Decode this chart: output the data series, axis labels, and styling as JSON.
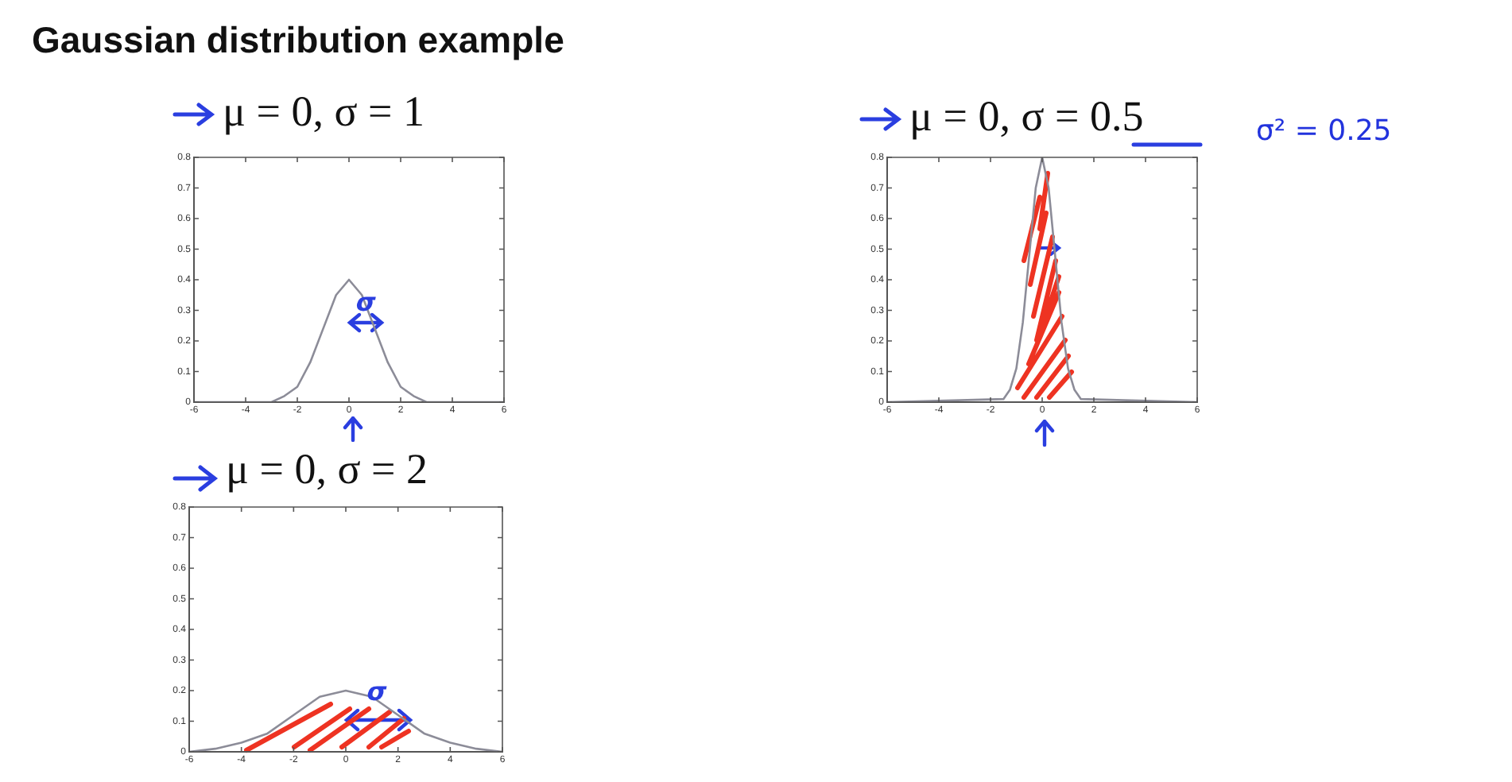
{
  "chart_data": [
    {
      "type": "line",
      "title": "μ = 0, σ = 1",
      "annotations": [
        "Gaussian distribution example",
        {
          "text": "σ",
          "x": 0.65,
          "y": 0.32
        }
      ],
      "x": [
        -6,
        -3,
        -2.5,
        -2,
        -1.5,
        -1,
        -0.5,
        0,
        0.5,
        1,
        1.5,
        2,
        2.5,
        3,
        6
      ],
      "series": [
        {
          "color": "#8c8c98",
          "values": [
            0,
            0,
            0.02,
            0.05,
            0.13,
            0.24,
            0.35,
            0.4,
            0.35,
            0.24,
            0.13,
            0.05,
            0.02,
            0,
            0
          ]
        }
      ],
      "xlim": [
        -6,
        6
      ],
      "xticks": [
        -6,
        -4,
        -2,
        0,
        2,
        4,
        6
      ],
      "ylim": [
        0,
        0.8
      ],
      "yticks": [
        0,
        0.1,
        0.2,
        0.3,
        0.4,
        0.5,
        0.6,
        0.7,
        0.8
      ],
      "grid": false,
      "legend": false,
      "marker": "none",
      "line_style": "solid"
    },
    {
      "type": "line",
      "title": "μ = 0, σ = 0.5",
      "annotations": [
        "σ² = 0.25"
      ],
      "x": [
        -6,
        -1.5,
        -1.25,
        -1,
        -0.75,
        -0.5,
        -0.25,
        0,
        0.25,
        0.5,
        0.75,
        1,
        1.25,
        1.5,
        6
      ],
      "series": [
        {
          "color": "#8c8c98",
          "values": [
            0,
            0.01,
            0.04,
            0.11,
            0.26,
            0.48,
            0.7,
            0.8,
            0.7,
            0.48,
            0.26,
            0.11,
            0.04,
            0.01,
            0
          ]
        }
      ],
      "xlim": [
        -6,
        6
      ],
      "xticks": [
        -6,
        -4,
        -2,
        0,
        2,
        4,
        6
      ],
      "ylim": [
        0,
        0.8
      ],
      "yticks": [
        0,
        0.1,
        0.2,
        0.3,
        0.4,
        0.5,
        0.6,
        0.7,
        0.8
      ],
      "grid": false,
      "legend": false,
      "marker": "none",
      "line_style": "solid"
    },
    {
      "type": "line",
      "title": "μ = 0, σ = 2",
      "annotations": [
        {
          "text": "σ",
          "x": 1.19,
          "y": 0.19
        }
      ],
      "x": [
        -6,
        -5,
        -4,
        -3,
        -2,
        -1,
        0,
        1,
        2,
        3,
        4,
        5,
        6
      ],
      "series": [
        {
          "color": "#8c8c98",
          "values": [
            0,
            0.01,
            0.03,
            0.06,
            0.12,
            0.18,
            0.2,
            0.18,
            0.12,
            0.06,
            0.03,
            0.01,
            0
          ]
        }
      ],
      "xlim": [
        -6,
        6
      ],
      "xticks": [
        -6,
        -4,
        -2,
        0,
        2,
        4,
        6
      ],
      "ylim": [
        0,
        0.8
      ],
      "yticks": [
        0,
        0.1,
        0.2,
        0.3,
        0.4,
        0.5,
        0.6,
        0.7,
        0.8
      ],
      "grid": false,
      "legend": false,
      "marker": "none",
      "line_style": "solid"
    }
  ]
}
